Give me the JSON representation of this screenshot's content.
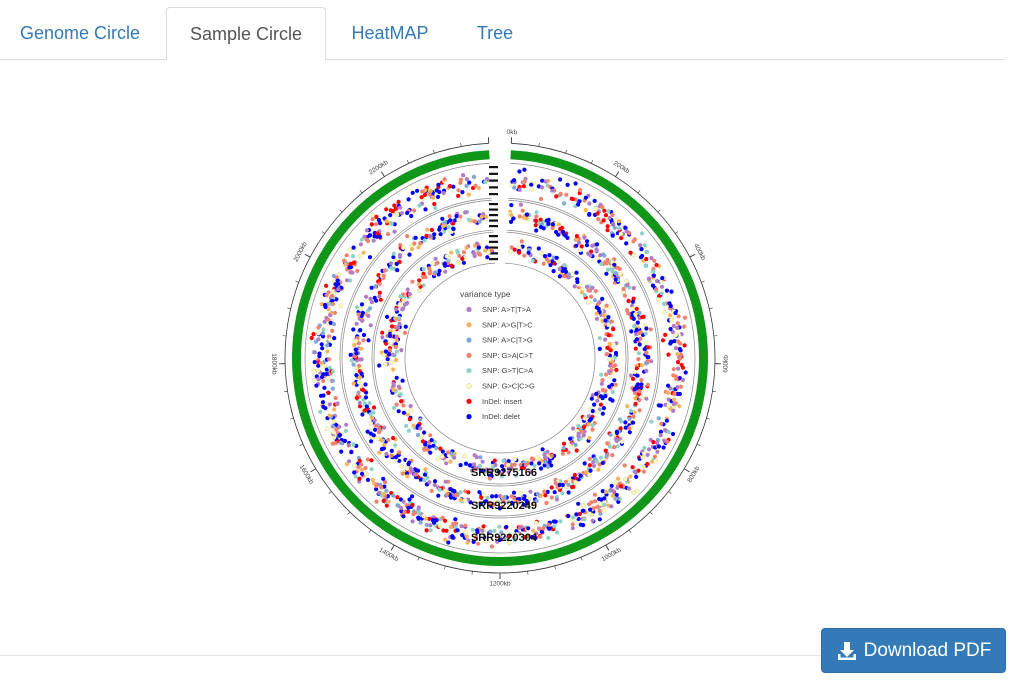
{
  "tabs": [
    {
      "label": "Genome Circle",
      "active": false
    },
    {
      "label": "Sample Circle",
      "active": true
    },
    {
      "label": "HeatMAP",
      "active": false
    },
    {
      "label": "Tree",
      "active": false
    }
  ],
  "download": {
    "label": "Download PDF",
    "icon": "download-icon"
  },
  "colors": {
    "accent": "#337ab7",
    "genome_band": "#109618"
  },
  "chart_data": {
    "type": "circos",
    "genome_ticks": [
      "0kb",
      "200kb",
      "400kb",
      "600kb",
      "800kb",
      "1000kb",
      "1200kb",
      "1400kb",
      "1600kb",
      "1800kb",
      "2000kb",
      "2200kb"
    ],
    "genome_length_kb": 2400,
    "samples": [
      "SRR9220304",
      "SRR9220249",
      "SRR9275166"
    ],
    "legend": {
      "title": "variance type",
      "items": [
        {
          "label": "SNP: A>T|T>A",
          "color": "#b07cc6"
        },
        {
          "label": "SNP: A>G|T>C",
          "color": "#f8b45a"
        },
        {
          "label": "SNP: A>C|T>G",
          "color": "#7fa8d8"
        },
        {
          "label": "SNP: G>A|C>T",
          "color": "#f4806e"
        },
        {
          "label": "SNP: G>T|C>A",
          "color": "#8dd3c7"
        },
        {
          "label": "SNP: G>C|C>G",
          "color": "#ffffb3"
        },
        {
          "label": "InDel: insert",
          "color": "#ff0000"
        },
        {
          "label": "InDel: delet",
          "color": "#0000ff"
        }
      ]
    }
  }
}
